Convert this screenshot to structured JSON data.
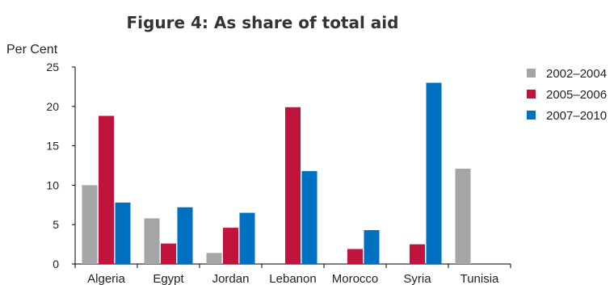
{
  "chart_data": {
    "type": "bar",
    "title": "Figure 4: As share of total aid",
    "ylabel": "Per Cent",
    "xlabel": "",
    "ylim": [
      0,
      25
    ],
    "yticks": [
      0,
      5,
      10,
      15,
      20,
      25
    ],
    "grid": false,
    "legend_position": "right",
    "categories": [
      "Algeria",
      "Egypt",
      "Jordan",
      "Lebanon",
      "Morocco",
      "Syria",
      "Tunisia"
    ],
    "series": [
      {
        "name": "2002–2004",
        "color": "#A5A5A8",
        "values": [
          10.0,
          5.8,
          1.4,
          0,
          0,
          0,
          12.1
        ]
      },
      {
        "name": "2005–2006",
        "color": "#C0143C",
        "values": [
          18.8,
          2.6,
          4.6,
          19.9,
          1.9,
          2.5,
          0
        ]
      },
      {
        "name": "2007–2010",
        "color": "#0070C0",
        "values": [
          7.8,
          7.2,
          6.5,
          11.8,
          4.3,
          23.0,
          0
        ]
      }
    ]
  }
}
